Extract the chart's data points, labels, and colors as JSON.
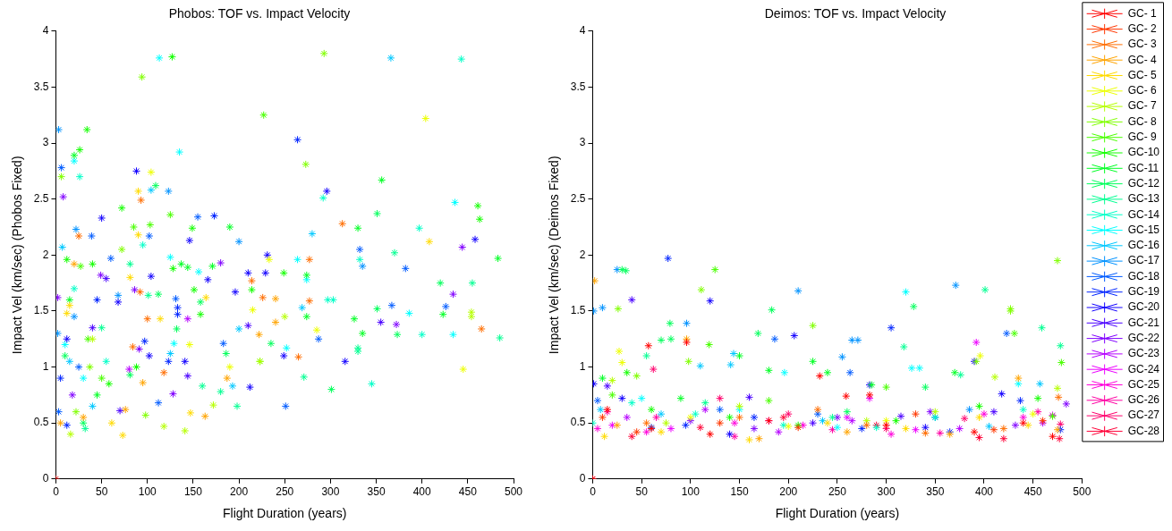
{
  "chart_data": [
    {
      "type": "scatter",
      "title": "Phobos: TOF vs. Impact Velocity",
      "xlabel": "Flight Duration (years)",
      "ylabel": "Impact Vel (km/sec) (Phobos Fixed)",
      "xlim": [
        0,
        500
      ],
      "xticks": [
        0,
        50,
        100,
        150,
        200,
        250,
        300,
        350,
        400,
        450,
        500
      ],
      "ylim": [
        0,
        4
      ],
      "yticks": [
        0,
        0.5,
        1,
        1.5,
        2,
        2.5,
        3,
        3.5,
        4
      ],
      "marker": "cross",
      "series": [
        {
          "color": "#ff0000",
          "x": [
            0
          ],
          "values": [
            0
          ]
        },
        {
          "color": "#ff6d00",
          "x": [
            93,
            313,
            25,
            214,
            277,
            277,
            226,
            465,
            265,
            118,
            100,
            84,
            92
          ],
          "values": [
            2.49,
            2.28,
            2.17,
            1.77,
            1.96,
            1.59,
            1.62,
            1.34,
            1.09,
            0.95,
            1.43,
            1.18,
            1.67
          ]
        },
        {
          "color": "#ffa400",
          "x": [
            20,
            240,
            240,
            222,
            187,
            95,
            163,
            76,
            30,
            5
          ],
          "values": [
            1.92,
            1.61,
            1.4,
            1.29,
            0.9,
            0.86,
            0.56,
            0.62,
            0.55,
            0.5
          ]
        },
        {
          "color": "#ffdb00",
          "x": [
            90,
            90,
            408,
            81,
            164,
            114,
            147,
            73,
            61,
            15,
            12
          ],
          "values": [
            2.57,
            2.18,
            2.12,
            1.8,
            1.62,
            1.43,
            0.59,
            0.39,
            0.5,
            1.55,
            1.48
          ]
        },
        {
          "color": "#edff00",
          "x": [
            404,
            104,
            233,
            215,
            146,
            285,
            445,
            190
          ],
          "values": [
            3.22,
            2.74,
            1.96,
            1.51,
            1.2,
            1.33,
            0.98,
            1.0
          ]
        },
        {
          "color": "#b6ff00",
          "x": [
            454,
            454,
            250,
            223,
            172,
            141,
            118,
            40,
            16
          ],
          "values": [
            1.49,
            1.45,
            1.45,
            1.05,
            0.66,
            0.43,
            0.47,
            1.25,
            0.4
          ]
        },
        {
          "color": "#80ff00",
          "x": [
            293,
            94,
            273,
            6,
            72,
            98,
            22,
            37
          ],
          "values": [
            3.8,
            3.59,
            2.81,
            2.7,
            2.05,
            0.57,
            0.6,
            1.0
          ]
        },
        {
          "color": "#49ff00",
          "x": [
            227,
            125,
            85,
            103,
            223,
            27,
            35,
            50
          ],
          "values": [
            3.25,
            2.36,
            2.25,
            2.27,
            1.05,
            1.9,
            1.25,
            0.9
          ]
        },
        {
          "color": "#12ff00",
          "x": [
            127,
            34,
            26,
            72,
            461,
            463,
            149,
            40,
            12,
            128,
            151,
            214,
            249,
            158,
            88,
            58
          ],
          "values": [
            3.77,
            3.12,
            2.94,
            2.42,
            2.44,
            2.32,
            2.24,
            1.92,
            1.96,
            1.88,
            1.69,
            1.69,
            1.84,
            1.47,
            1.0,
            0.85
          ]
        },
        {
          "color": "#00ff24",
          "x": [
            20,
            356,
            190,
            330,
            483,
            171,
            137,
            144,
            274,
            423,
            335,
            326,
            274,
            15,
            45
          ],
          "values": [
            2.89,
            2.67,
            2.25,
            2.24,
            1.97,
            1.9,
            1.92,
            1.89,
            1.82,
            1.47,
            1.3,
            1.43,
            1.45,
            1.6,
            0.75
          ]
        },
        {
          "color": "#00ff5b",
          "x": [
            109,
            351,
            420,
            112,
            351,
            373,
            301,
            235,
            158,
            132,
            186,
            81,
            30,
            10
          ],
          "values": [
            2.62,
            2.37,
            1.75,
            1.65,
            1.52,
            1.29,
            0.8,
            1.21,
            1.58,
            1.34,
            1.12,
            0.93,
            0.5,
            1.1
          ]
        },
        {
          "color": "#00ff92",
          "x": [
            81,
            101,
            370,
            455,
            485,
            330,
            330,
            271,
            198,
            180,
            160,
            50,
            32
          ],
          "values": [
            1.92,
            1.64,
            2.02,
            1.75,
            1.26,
            1.17,
            1.14,
            0.91,
            0.65,
            0.78,
            0.83,
            1.35,
            0.45
          ]
        },
        {
          "color": "#00ffc8",
          "x": [
            443,
            26,
            95,
            292,
            397,
            332,
            297,
            303,
            400,
            345,
            20,
            55
          ],
          "values": [
            3.75,
            2.7,
            2.09,
            2.51,
            2.24,
            1.96,
            1.6,
            1.6,
            1.29,
            0.85,
            1.7,
            1.05
          ]
        },
        {
          "color": "#00ffff",
          "x": [
            113,
            135,
            20,
            436,
            264,
            125,
            156,
            274,
            386,
            434,
            252,
            129,
            10,
            30
          ],
          "values": [
            3.76,
            2.92,
            2.84,
            2.47,
            1.96,
            1.98,
            1.85,
            1.78,
            1.48,
            1.29,
            1.17,
            1.21,
            1.2,
            0.9
          ]
        },
        {
          "color": "#00c8ff",
          "x": [
            366,
            104,
            7,
            280,
            200,
            193,
            125,
            269,
            15,
            40
          ],
          "values": [
            3.76,
            2.58,
            2.07,
            2.19,
            1.34,
            0.83,
            1.12,
            1.53,
            1.05,
            0.65
          ]
        },
        {
          "color": "#0092ff",
          "x": [
            3,
            123,
            22,
            200,
            335,
            68,
            2,
            20
          ],
          "values": [
            3.12,
            2.57,
            2.23,
            2.12,
            1.9,
            1.64,
            1.3,
            1.45
          ]
        },
        {
          "color": "#005bff",
          "x": [
            6,
            155,
            39,
            102,
            60,
            332,
            382,
            426,
            367,
            131,
            287,
            183,
            251,
            112,
            3,
            25
          ],
          "values": [
            2.78,
            2.34,
            2.17,
            2.17,
            1.97,
            2.05,
            1.88,
            1.54,
            1.55,
            1.61,
            1.25,
            1.21,
            0.65,
            0.68,
            0.6,
            1.0
          ]
        },
        {
          "color": "#0024ff",
          "x": [
            264,
            173,
            133,
            133,
            123,
            97,
            5,
            12,
            45
          ],
          "values": [
            3.03,
            2.35,
            1.47,
            1.53,
            1.05,
            1.23,
            0.9,
            0.48,
            1.6
          ]
        },
        {
          "color": "#1200ff",
          "x": [
            88,
            50,
            296,
            146,
            458,
            231,
            210,
            229,
            104,
            166,
            196,
            316,
            212,
            249,
            141,
            102,
            68,
            12
          ],
          "values": [
            2.75,
            2.33,
            2.57,
            2.13,
            2.14,
            2.0,
            1.84,
            1.84,
            1.81,
            1.78,
            1.67,
            1.05,
            0.82,
            1.1,
            1.05,
            1.1,
            1.58,
            1.25
          ]
        },
        {
          "color": "#4900ff",
          "x": [
            355,
            210,
            144,
            70,
            55,
            40
          ],
          "values": [
            1.4,
            1.37,
            0.92,
            0.61,
            1.79,
            1.35
          ]
        },
        {
          "color": "#8000ff",
          "x": [
            8,
            444,
            180,
            49,
            86,
            434,
            372,
            128,
            91,
            2,
            18
          ],
          "values": [
            2.52,
            2.07,
            1.93,
            1.82,
            1.69,
            1.65,
            1.38,
            0.76,
            1.16,
            1.62,
            0.75
          ]
        },
        {
          "color": "#b600ff",
          "x": [
            144,
            80
          ],
          "values": [
            1.43,
            0.98
          ]
        }
      ]
    },
    {
      "type": "scatter",
      "title": "Deimos: TOF vs. Impact Velocity",
      "xlabel": "Flight Duration (years)",
      "ylabel": "Impact Vel (km/sec) (Deimos Fixed)",
      "xlim": [
        0,
        500
      ],
      "xticks": [
        0,
        50,
        100,
        150,
        200,
        250,
        300,
        350,
        400,
        450,
        500
      ],
      "ylim": [
        0,
        4
      ],
      "yticks": [
        0,
        0.5,
        1,
        1.5,
        2,
        2.5,
        3,
        3.5,
        4
      ],
      "marker": "cross",
      "legend": "right",
      "series": [
        {
          "name": "GC- 1",
          "color": "#ff0000",
          "x": [
            0,
            57,
            96,
            232,
            259,
            283,
            15,
            60,
            120,
            180,
            300,
            390,
            470,
            440
          ],
          "values": [
            0,
            1.19,
            1.22,
            0.92,
            0.74,
            0.75,
            0.62,
            0.45,
            0.4,
            0.52,
            0.48,
            0.42,
            0.38,
            0.5
          ]
        },
        {
          "name": "GC- 2",
          "color": "#ff3700",
          "x": [
            10,
            45,
            130,
            210,
            330,
            410,
            460
          ],
          "values": [
            0.55,
            0.42,
            0.5,
            0.46,
            0.58,
            0.44,
            0.52
          ]
        },
        {
          "name": "GC- 3",
          "color": "#ff6d00",
          "x": [
            476,
            150,
            230,
            280,
            340,
            420,
            55
          ],
          "values": [
            0.73,
            0.55,
            0.62,
            0.48,
            0.41,
            0.45,
            0.5
          ]
        },
        {
          "name": "GC- 4",
          "color": "#ffa400",
          "x": [
            2,
            96,
            435,
            25,
            170,
            260,
            365,
            475
          ],
          "values": [
            1.77,
            1.25,
            0.9,
            0.48,
            0.36,
            0.42,
            0.4,
            0.44
          ]
        },
        {
          "name": "GC- 5",
          "color": "#ffdb00",
          "x": [
            12,
            70,
            160,
            240,
            320,
            395,
            445
          ],
          "values": [
            0.38,
            0.42,
            0.35,
            0.5,
            0.45,
            0.55,
            0.48
          ]
        },
        {
          "name": "GC- 6",
          "color": "#edff00",
          "x": [
            27,
            30,
            396,
            100,
            200,
            300,
            450
          ],
          "values": [
            1.14,
            1.04,
            1.1,
            0.55,
            0.47,
            0.52,
            0.58
          ]
        },
        {
          "name": "GC- 7",
          "color": "#b6ff00",
          "x": [
            411,
            475,
            20,
            75,
            150,
            280,
            350
          ],
          "values": [
            0.91,
            0.81,
            0.88,
            0.5,
            0.65,
            0.52,
            0.6
          ]
        },
        {
          "name": "GC- 8",
          "color": "#80ff00",
          "x": [
            475,
            111,
            26,
            225,
            427,
            427,
            392,
            45,
            98
          ],
          "values": [
            1.95,
            1.69,
            1.52,
            1.37,
            1.52,
            1.5,
            1.05,
            0.92,
            1.05
          ]
        },
        {
          "name": "GC- 9",
          "color": "#49ff00",
          "x": [
            125,
            479,
            431,
            119,
            20,
            180,
            300,
            470
          ],
          "values": [
            1.87,
            1.04,
            1.3,
            1.2,
            0.75,
            0.7,
            0.82,
            0.56
          ]
        },
        {
          "name": "GC-10",
          "color": "#12ff00",
          "x": [
            35,
            60,
            140,
            210,
            310,
            395,
            455
          ],
          "values": [
            0.95,
            0.62,
            0.55,
            0.48,
            0.52,
            0.65,
            0.72
          ]
        },
        {
          "name": "GC-11",
          "color": "#00ff24",
          "x": [
            150,
            180,
            225,
            240,
            370,
            10,
            90,
            285
          ],
          "values": [
            1.1,
            0.97,
            1.05,
            0.95,
            0.95,
            0.9,
            0.72,
            0.84
          ]
        },
        {
          "name": "GC-12",
          "color": "#00ff5b",
          "x": [
            30,
            34,
            183,
            79,
            169,
            328,
            70,
            80,
            260,
            340
          ],
          "values": [
            1.87,
            1.86,
            1.51,
            1.39,
            1.3,
            1.54,
            1.24,
            1.25,
            0.6,
            0.82
          ]
        },
        {
          "name": "GC-13",
          "color": "#00ff92",
          "x": [
            401,
            318,
            478,
            459,
            376,
            55,
            115,
            245
          ],
          "values": [
            1.69,
            1.18,
            1.19,
            1.35,
            0.93,
            1.1,
            0.68,
            0.55
          ]
        },
        {
          "name": "GC-14",
          "color": "#00ffc8",
          "x": [
            0,
            40,
            105,
            195,
            290,
            350,
            440
          ],
          "values": [
            0.5,
            0.68,
            0.58,
            0.48,
            0.46,
            0.55,
            0.62
          ]
        },
        {
          "name": "GC-15",
          "color": "#00ffff",
          "x": [
            320,
            326,
            334,
            196,
            435,
            50,
            150,
            250
          ],
          "values": [
            1.67,
            0.99,
            0.99,
            0.95,
            0.85,
            0.72,
            0.62,
            0.46
          ]
        },
        {
          "name": "GC-16",
          "color": "#00c8ff",
          "x": [
            144,
            457,
            110,
            141,
            8,
            70,
            235,
            405
          ],
          "values": [
            1.12,
            0.85,
            1.01,
            1.02,
            0.62,
            0.58,
            0.52,
            0.47
          ]
        },
        {
          "name": "GC-17",
          "color": "#0092ff",
          "x": [
            25,
            210,
            371,
            1,
            10,
            96,
            255,
            265,
            271,
            385
          ],
          "values": [
            1.87,
            1.68,
            1.73,
            1.5,
            1.53,
            1.39,
            1.09,
            1.24,
            1.24,
            0.62
          ]
        },
        {
          "name": "GC-18",
          "color": "#005bff",
          "x": [
            186,
            263,
            423,
            5,
            60,
            130,
            230,
            350
          ],
          "values": [
            1.25,
            0.95,
            1.3,
            0.7,
            0.46,
            0.62,
            0.58,
            0.55
          ]
        },
        {
          "name": "GC-19",
          "color": "#0024ff",
          "x": [
            77,
            305,
            437,
            95,
            165,
            275,
            365,
            478
          ],
          "values": [
            1.97,
            1.35,
            0.7,
            0.48,
            0.55,
            0.45,
            0.42,
            0.44
          ]
        },
        {
          "name": "GC-20",
          "color": "#1200ff",
          "x": [
            120,
            206,
            390,
            418,
            283,
            1,
            30,
            140,
            340
          ],
          "values": [
            1.59,
            1.28,
            1.05,
            0.76,
            0.84,
            0.85,
            0.72,
            0.4,
            0.46
          ]
        },
        {
          "name": "GC-21",
          "color": "#4900ff",
          "x": [
            40,
            15,
            160,
            225,
            315,
            410
          ],
          "values": [
            1.6,
            0.83,
            0.73,
            0.5,
            0.56,
            0.6
          ]
        },
        {
          "name": "GC-22",
          "color": "#8000ff",
          "x": [
            484,
            100,
            165,
            250,
            345,
            432
          ],
          "values": [
            0.67,
            0.52,
            0.45,
            0.55,
            0.6,
            0.48
          ]
        },
        {
          "name": "GC-23",
          "color": "#b600ff",
          "x": [
            35,
            115,
            190,
            265,
            375,
            460
          ],
          "values": [
            0.55,
            0.62,
            0.42,
            0.52,
            0.45,
            0.5
          ]
        },
        {
          "name": "GC-24",
          "color": "#ed00ff",
          "x": [
            392,
            283,
            20,
            80,
            180,
            260,
            330,
            470
          ],
          "values": [
            1.22,
            0.72,
            0.48,
            0.45,
            0.52,
            0.55,
            0.44,
            0.57
          ]
        },
        {
          "name": "GC-25",
          "color": "#ff00db",
          "x": [
            5,
            55,
            145,
            215,
            305,
            400,
            440
          ],
          "values": [
            0.45,
            0.42,
            0.5,
            0.48,
            0.4,
            0.58,
            0.55
          ]
        },
        {
          "name": "GC-26",
          "color": "#ff00a4",
          "x": [
            15,
            65,
            145,
            245,
            355,
            455
          ],
          "values": [
            0.6,
            0.55,
            0.38,
            0.44,
            0.41,
            0.6
          ]
        },
        {
          "name": "GC-27",
          "color": "#ff006d",
          "x": [
            62,
            130,
            200,
            300,
            380,
            478
          ],
          "values": [
            0.98,
            0.72,
            0.58,
            0.45,
            0.54,
            0.49
          ]
        },
        {
          "name": "GC-28",
          "color": "#ff0037",
          "x": [
            0,
            40,
            110,
            195,
            290,
            395,
            420,
            477
          ],
          "values": [
            0,
            0.38,
            0.46,
            0.55,
            0.48,
            0.37,
            0.36,
            0.36
          ]
        }
      ]
    }
  ]
}
